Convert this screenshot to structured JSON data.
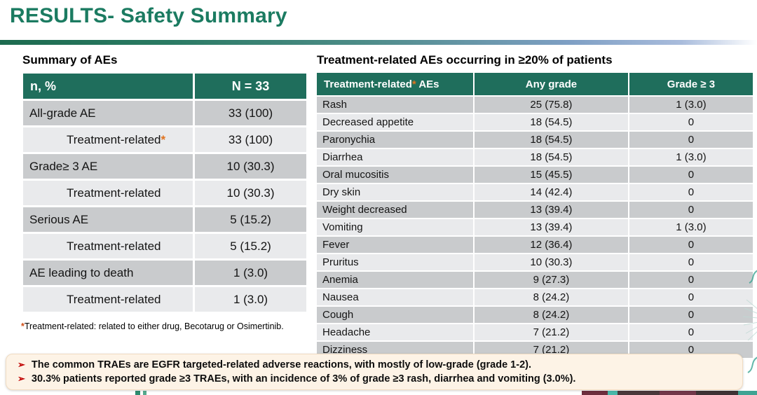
{
  "title": "RESULTS- Safety Summary",
  "colors": {
    "title_green": "#1b7b61",
    "header_green": "#1f6e5c",
    "row_dark": "#c9cbcd",
    "row_light": "#e9eaec",
    "asterisk_orange": "#e0731f",
    "bullet_red": "#c00000",
    "callout_bg": "#fdf3e6",
    "divider_gradient_left": "#1d6b4f",
    "divider_gradient_right": "#a9bcdc"
  },
  "left_table": {
    "caption": "Summary of AEs",
    "header": {
      "col1": "n, %",
      "col2": "N = 33"
    },
    "rows": [
      {
        "label": "All-grade AE",
        "value": "33 (100)",
        "indent": false,
        "star": false
      },
      {
        "label": "Treatment-related",
        "value": "33 (100)",
        "indent": true,
        "star": true
      },
      {
        "label": "Grade≥ 3 AE",
        "value": "10 (30.3)",
        "indent": false,
        "star": false
      },
      {
        "label": "Treatment-related",
        "value": "10 (30.3)",
        "indent": true,
        "star": false
      },
      {
        "label": "Serious AE",
        "value": "5 (15.2)",
        "indent": false,
        "star": false
      },
      {
        "label": "Treatment-related",
        "value": "5 (15.2)",
        "indent": true,
        "star": false
      },
      {
        "label": "AE leading to death",
        "value": "1 (3.0)",
        "indent": false,
        "star": false
      },
      {
        "label": "Treatment-related",
        "value": "1 (3.0)",
        "indent": true,
        "star": false
      }
    ],
    "footnote_star": "*",
    "footnote_text": "Treatment-related: related to either drug, Becotarug or Osimertinib."
  },
  "right_table": {
    "caption": "Treatment-related AEs occurring in ≥20% of patients",
    "header": {
      "name_pre": "Treatment-related",
      "star": "*",
      "name_post": " AEs",
      "any_grade": "Any grade",
      "grade3": "Grade ≥ 3"
    },
    "rows": [
      {
        "name": "Rash",
        "any_grade": "25 (75.8)",
        "grade3": "1 (3.0)"
      },
      {
        "name": "Decreased appetite",
        "any_grade": "18 (54.5)",
        "grade3": "0"
      },
      {
        "name": "Paronychia",
        "any_grade": "18 (54.5)",
        "grade3": "0"
      },
      {
        "name": "Diarrhea",
        "any_grade": "18 (54.5)",
        "grade3": "1 (3.0)"
      },
      {
        "name": "Oral mucositis",
        "any_grade": "15 (45.5)",
        "grade3": "0"
      },
      {
        "name": "Dry skin",
        "any_grade": "14 (42.4)",
        "grade3": "0"
      },
      {
        "name": "Weight decreased",
        "any_grade": "13 (39.4)",
        "grade3": "0"
      },
      {
        "name": "Vomiting",
        "any_grade": "13 (39.4)",
        "grade3": "1 (3.0)"
      },
      {
        "name": "Fever",
        "any_grade": "12 (36.4)",
        "grade3": "0"
      },
      {
        "name": "Pruritus",
        "any_grade": "10 (30.3)",
        "grade3": "0"
      },
      {
        "name": "Anemia",
        "any_grade": "9 (27.3)",
        "grade3": "0"
      },
      {
        "name": "Nausea",
        "any_grade": "8 (24.2)",
        "grade3": "0"
      },
      {
        "name": "Cough",
        "any_grade": "8 (24.2)",
        "grade3": "0"
      },
      {
        "name": "Headache",
        "any_grade": "7 (21.2)",
        "grade3": "0"
      },
      {
        "name": "Dizziness",
        "any_grade": "7 (21.2)",
        "grade3": "0"
      }
    ]
  },
  "footer": {
    "bullet_icon": "➢",
    "bullets": [
      "The common TRAEs are EGFR targeted-related adverse reactions, with mostly of low-grade (grade 1-2).",
      "30.3% patients reported grade ≥3 TRAEs, with an incidence of 3% of grade ≥3 rash, diarrhea and vomiting (3.0%)."
    ]
  }
}
